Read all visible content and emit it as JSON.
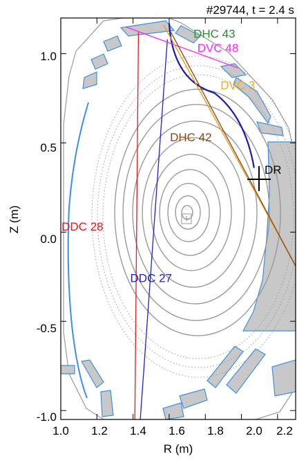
{
  "title": "#29744, t = 2.4 s",
  "x_axis": {
    "label": "R (m)",
    "range": [
      1.0,
      2.3
    ],
    "ticks": [
      "1.0",
      "1.2",
      "1.4",
      "1.6",
      "1.8",
      "2.0",
      "2.2"
    ],
    "tick_values": [
      1.0,
      1.2,
      1.4,
      1.6,
      1.8,
      2.0,
      2.2
    ]
  },
  "y_axis": {
    "label": "Z (m)",
    "range": [
      -1.05,
      1.2
    ],
    "ticks": [
      "-1.0",
      "-0.5",
      "0.0",
      "0.5",
      "1.0"
    ],
    "tick_values": [
      -1.0,
      -0.5,
      0.0,
      0.5,
      1.0
    ]
  },
  "colors": {
    "vessel": "#3d8fe0",
    "vessel_fill": "#c8c8c8",
    "flux": "#999999",
    "separatrix": "#1a1aaa",
    "DDC28": "#e31a1c",
    "DDC27": "#1f1fcc",
    "DHC43": "#2e8b2e",
    "DVC48": "#ff22ff",
    "DVC3": "#f5a623",
    "DHC42": "#8b4513",
    "DR": "#000000"
  },
  "chords": [
    {
      "id": "DDC28",
      "label": "DDC 28",
      "color_key": "DDC28",
      "points": [
        [
          1.43,
          1.12
        ],
        [
          1.41,
          -1.05
        ]
      ]
    },
    {
      "id": "DDC27",
      "label": "DDC 27",
      "color_key": "DDC27",
      "points": [
        [
          1.59,
          1.08
        ],
        [
          1.44,
          -1.05
        ]
      ]
    },
    {
      "id": "DHC43",
      "label": "DHC 43",
      "color_key": "DHC43",
      "points": [
        [
          1.57,
          1.16
        ],
        [
          2.3,
          -0.19
        ]
      ]
    },
    {
      "id": "DVC48",
      "label": "DVC 48",
      "color_key": "DVC48",
      "points": [
        [
          1.36,
          1.15
        ],
        [
          1.98,
          0.92
        ]
      ]
    },
    {
      "id": "DVC3",
      "label": "DVC 3",
      "color_key": "DVC3",
      "points": [
        [
          1.57,
          1.16
        ],
        [
          2.3,
          -0.19
        ]
      ]
    },
    {
      "id": "DHC42",
      "label": "DHC 42",
      "color_key": "DHC42",
      "points": [
        [
          1.61,
          1.12
        ],
        [
          2.3,
          -0.19
        ]
      ]
    }
  ],
  "chord_labels": [
    {
      "text": "DHC 43",
      "color_key": "DHC43",
      "R": 1.85,
      "Z": 1.09
    },
    {
      "text": "DVC 48",
      "color_key": "DVC48",
      "R": 1.87,
      "Z": 1.01
    },
    {
      "text": "DVC 3",
      "color_key": "DVC3",
      "R": 1.98,
      "Z": 0.8
    },
    {
      "text": "DHC 42",
      "color_key": "DHC42",
      "R": 1.72,
      "Z": 0.51
    },
    {
      "text": "DDC 28",
      "color_key": "DDC28",
      "R": 1.12,
      "Z": 0.01
    },
    {
      "text": "DDC 27",
      "color_key": "DDC27",
      "R": 1.5,
      "Z": -0.28
    }
  ],
  "marker": {
    "label": "DR",
    "R": 2.09,
    "Z": 0.33
  },
  "axis_center": {
    "R": 1.7,
    "Z": 0.11
  }
}
